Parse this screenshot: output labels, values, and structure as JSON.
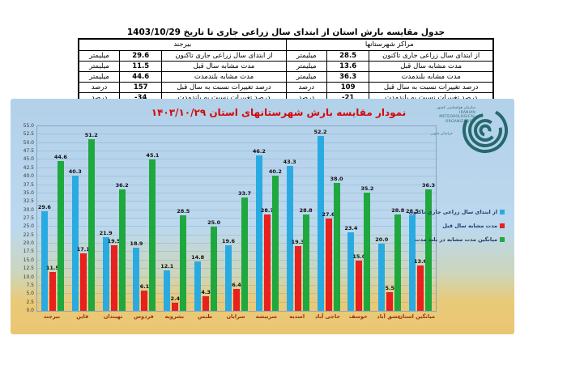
{
  "table": {
    "title": "جدول مقایسه بارش استان از ابتدای سال زراعی جاری تا  تاریخ 1403/10/29",
    "group_headers": [
      "مراکز شهرستانها",
      "بیرجند"
    ],
    "rows": [
      {
        "label": "از ابتدای سال زراعی جاری تاکنون",
        "centers_value": "28.5",
        "centers_unit": "میلیمتر",
        "birjand_value": "29.6",
        "birjand_unit": "میلیمتر"
      },
      {
        "label": "مدت مشابه سال قبل",
        "centers_value": "13.6",
        "centers_unit": "میلیمتر",
        "birjand_value": "11.5",
        "birjand_unit": "میلیمتر"
      },
      {
        "label": "مدت مشابه بلندمدت",
        "centers_value": "36.3",
        "centers_unit": "میلیمتر",
        "birjand_value": "44.6",
        "birjand_unit": "میلیمتر"
      },
      {
        "label": "درصد تغییرات نسبت به سال قبل",
        "centers_value": "109",
        "centers_unit": "درصد",
        "birjand_value": "157",
        "birjand_unit": "درصد"
      },
      {
        "label": "درصد تغییرات نسبت به بلندمدت",
        "centers_value": "-21",
        "centers_unit": "درصد",
        "birjand_value": "-34",
        "birjand_unit": "درصد"
      }
    ]
  },
  "chart": {
    "title": "نمودار مقایسه بارش شهرستانهای استان ۱۴۰۳/۱۰/۲۹",
    "logo": {
      "fa_name": "سازمان هواشناسی کشور",
      "en_lines": [
        "IRANIAN",
        "METEOROLOGICAL",
        "ORGANIZATION"
      ],
      "region": "خراسان جنوبی",
      "color": "#26696d"
    }
  },
  "chart_data": {
    "type": "bar",
    "title": "نمودار مقایسه بارش شهرستانهای استان ۱۴۰۳/۱۰/۲۹",
    "categories": [
      "بیرجند",
      "قاین",
      "نهبندان",
      "فردوس",
      "بشرویه",
      "طبس",
      "سرایان",
      "سربیشه",
      "اسدیه",
      "حاجی آباد",
      "خوسف",
      "عشق آباد",
      "میانگین استان"
    ],
    "series": [
      {
        "name": "از ابتدای سال زراعی جاری تاکنون",
        "color": "#29abe2",
        "values": [
          29.6,
          40.3,
          21.9,
          18.9,
          12.1,
          14.8,
          19.6,
          46.2,
          43.3,
          52.2,
          23.4,
          20.0,
          28.5
        ]
      },
      {
        "name": "مدت مشابه سال قبل",
        "color": "#e8201e",
        "values": [
          11.5,
          17.1,
          19.5,
          6.1,
          2.4,
          4.3,
          6.4,
          28.7,
          19.3,
          27.6,
          15.0,
          5.5,
          13.6
        ]
      },
      {
        "name": "میانگین مدت مشابه در بلند مدت",
        "color": "#1fa83e",
        "values": [
          44.6,
          51.2,
          36.2,
          45.1,
          28.5,
          25.0,
          33.7,
          40.2,
          28.8,
          38.0,
          35.2,
          28.8,
          36.3
        ]
      }
    ],
    "ylim": [
      0,
      55
    ],
    "ytick_step": 2.5,
    "grid": true,
    "legend_position": "right",
    "value_labels_decimals": 1
  }
}
